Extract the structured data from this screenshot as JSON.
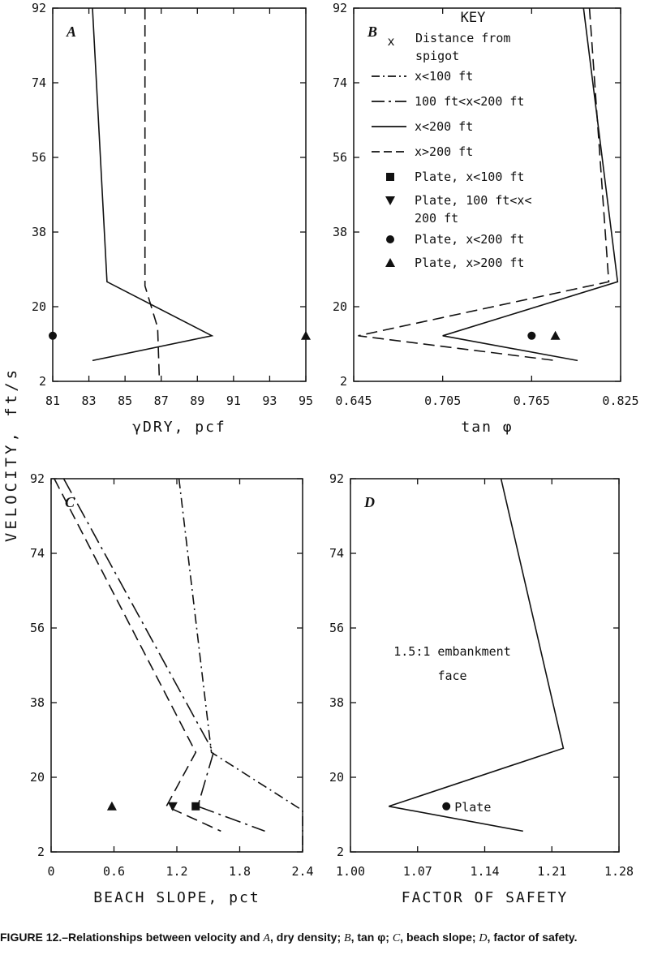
{
  "caption": {
    "prefix": "FIGURE 12.–Relationships between velocity and ",
    "a": "A",
    "a_text": ", dry density; ",
    "b": "B",
    "b_text": ", tan φ; ",
    "c": "C",
    "c_text": ", beach slope; ",
    "d": "D",
    "d_text": ", factor of safety."
  },
  "y_axis_label": "VELOCITY, ft/s",
  "key": {
    "title": "KEY",
    "distance_symbol": "x",
    "distance_label": [
      "Distance from",
      "spigot"
    ],
    "entries": [
      {
        "type": "line",
        "style": "dashdot",
        "label": "x<100 ft"
      },
      {
        "type": "line",
        "style": "longdashdot",
        "label": "100 ft<x<200 ft"
      },
      {
        "type": "line",
        "style": "solid",
        "label": "x<200 ft"
      },
      {
        "type": "line",
        "style": "dashed",
        "label": "x>200 ft"
      },
      {
        "type": "marker",
        "marker": "square",
        "label": [
          "Plate, x<100 ft"
        ]
      },
      {
        "type": "marker",
        "marker": "triangle-down",
        "label": [
          "Plate, 100 ft<x<",
          "200 ft"
        ]
      },
      {
        "type": "marker",
        "marker": "circle",
        "label": [
          "Plate, x<200 ft"
        ]
      },
      {
        "type": "marker",
        "marker": "triangle-up",
        "label": [
          "Plate, x>200 ft"
        ]
      }
    ]
  },
  "chart_data": [
    {
      "panel": "A",
      "type": "line",
      "xlabel": "γDRY, pcf",
      "ylabel": "VELOCITY, ft/s",
      "xlim": [
        81,
        95
      ],
      "ylim": [
        2,
        92
      ],
      "x_ticks": [
        "81",
        "83",
        "85",
        "87",
        "89",
        "91",
        "93",
        "95"
      ],
      "y_ticks": [
        "2",
        "20",
        "38",
        "56",
        "74",
        "92"
      ],
      "series": [
        {
          "style": "solid",
          "points": [
            [
              83.2,
              92
            ],
            [
              84.0,
              26
            ],
            [
              89.8,
              13
            ],
            [
              83.2,
              7
            ]
          ]
        },
        {
          "style": "dashed",
          "points": [
            [
              86.1,
              92
            ],
            [
              86.1,
              25
            ],
            [
              86.8,
              15
            ],
            [
              86.9,
              2
            ]
          ]
        }
      ],
      "markers": [
        {
          "marker": "circle",
          "x": 81.0,
          "y": 13
        },
        {
          "marker": "triangle-up",
          "x": 95.0,
          "y": 13
        }
      ]
    },
    {
      "panel": "B",
      "type": "line",
      "xlabel": "tan φ",
      "ylabel": "VELOCITY, ft/s",
      "xlim": [
        0.645,
        0.825
      ],
      "ylim": [
        2,
        92
      ],
      "x_ticks": [
        "0.645",
        "0.705",
        "0.765",
        "0.825"
      ],
      "y_ticks": [
        "2",
        "20",
        "38",
        "56",
        "74",
        "92"
      ],
      "series": [
        {
          "style": "solid",
          "points": [
            [
              0.8,
              92
            ],
            [
              0.823,
              26
            ],
            [
              0.705,
              13
            ],
            [
              0.796,
              7
            ]
          ]
        },
        {
          "style": "dashed",
          "points": [
            [
              0.804,
              92
            ],
            [
              0.817,
              26
            ],
            [
              0.648,
              13
            ],
            [
              0.781,
              7
            ]
          ]
        }
      ],
      "markers": [
        {
          "marker": "circle",
          "x": 0.765,
          "y": 13
        },
        {
          "marker": "triangle-up",
          "x": 0.781,
          "y": 13
        }
      ]
    },
    {
      "panel": "C",
      "type": "line",
      "xlabel": "BEACH SLOPE, pct",
      "ylabel": "VELOCITY, ft/s",
      "xlim": [
        0,
        2.4
      ],
      "ylim": [
        2,
        92
      ],
      "x_ticks": [
        "0",
        "0.6",
        "1.2",
        "1.8",
        "2.4"
      ],
      "y_ticks": [
        "2",
        "20",
        "38",
        "56",
        "74",
        "92"
      ],
      "series": [
        {
          "style": "dashdot",
          "points": [
            [
              1.22,
              92
            ],
            [
              1.53,
              26
            ],
            [
              2.4,
              12
            ],
            [
              2.4,
              2
            ]
          ]
        },
        {
          "style": "longdashdot",
          "points": [
            [
              0.12,
              92
            ],
            [
              1.55,
              26
            ],
            [
              1.4,
              13
            ],
            [
              2.04,
              7
            ]
          ]
        },
        {
          "style": "dashed",
          "points": [
            [
              0.03,
              92
            ],
            [
              1.38,
              26
            ],
            [
              1.1,
              13
            ],
            [
              1.62,
              7
            ]
          ]
        }
      ],
      "markers": [
        {
          "marker": "triangle-up",
          "x": 0.58,
          "y": 13
        },
        {
          "marker": "triangle-down",
          "x": 1.16,
          "y": 13
        },
        {
          "marker": "square",
          "x": 1.38,
          "y": 13
        }
      ]
    },
    {
      "panel": "D",
      "type": "line",
      "xlabel": "FACTOR OF SAFETY",
      "ylabel": "VELOCITY, ft/s",
      "xlim": [
        1.0,
        1.28
      ],
      "ylim": [
        2,
        92
      ],
      "x_ticks": [
        "1.00",
        "1.07",
        "1.14",
        "1.21",
        "1.28"
      ],
      "y_ticks": [
        "2",
        "20",
        "38",
        "56",
        "74",
        "92"
      ],
      "annotation": [
        "1.5:1 embankment",
        "face"
      ],
      "series": [
        {
          "style": "solid",
          "points": [
            [
              1.157,
              92
            ],
            [
              1.222,
              27
            ],
            [
              1.04,
              13
            ],
            [
              1.18,
              7
            ]
          ]
        }
      ],
      "markers": [
        {
          "marker": "circle",
          "x": 1.1,
          "y": 13,
          "label": "Plate"
        }
      ]
    }
  ]
}
